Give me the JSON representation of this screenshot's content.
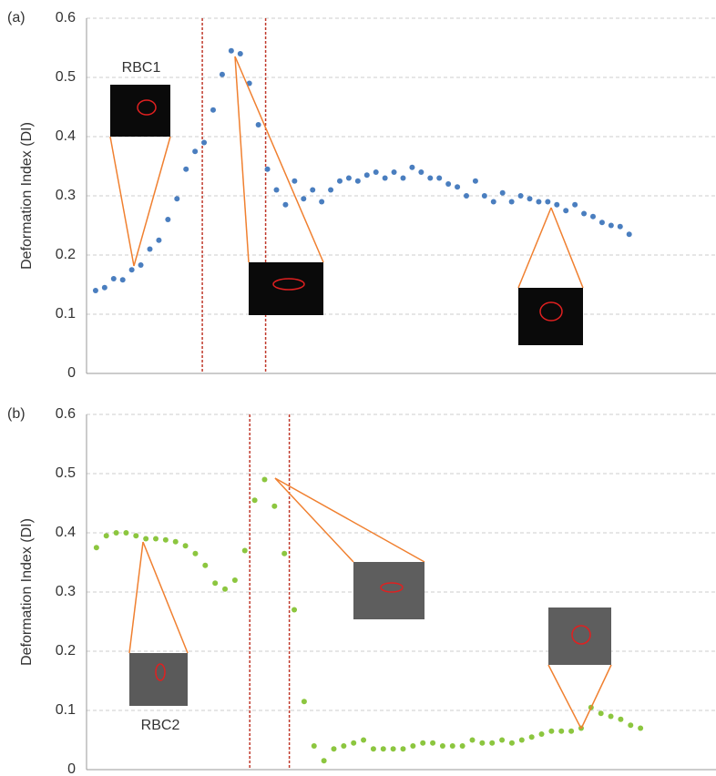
{
  "chart_data": [
    {
      "type": "scatter",
      "panel_label": "(a)",
      "y_label": "Deformation Index (DI)",
      "annotation": "RBC1",
      "color": "#4a7ebf",
      "x": [
        1,
        2,
        3,
        4,
        5,
        6,
        7,
        8,
        9,
        10,
        11,
        12,
        13,
        14,
        15,
        16,
        17,
        18,
        19,
        20,
        21,
        22,
        23,
        24,
        25,
        26,
        27,
        28,
        29,
        30,
        31,
        32,
        33,
        34,
        35,
        36,
        37,
        38,
        39,
        40,
        41,
        42,
        43,
        44,
        45,
        46,
        47,
        48,
        49,
        50,
        51,
        52,
        53,
        54,
        55,
        56,
        57,
        58,
        59,
        60
      ],
      "values": [
        0.14,
        0.145,
        0.16,
        0.158,
        0.175,
        0.183,
        0.21,
        0.225,
        0.26,
        0.295,
        0.345,
        0.375,
        0.39,
        0.445,
        0.505,
        0.545,
        0.54,
        0.49,
        0.42,
        0.345,
        0.31,
        0.285,
        0.325,
        0.295,
        0.31,
        0.29,
        0.31,
        0.325,
        0.33,
        0.325,
        0.335,
        0.34,
        0.33,
        0.34,
        0.33,
        0.348,
        0.34,
        0.33,
        0.33,
        0.32,
        0.315,
        0.3,
        0.325,
        0.3,
        0.29,
        0.305,
        0.29,
        0.3,
        0.295,
        0.29,
        0.29,
        0.285,
        0.275,
        0.285,
        0.27,
        0.265,
        0.255,
        0.25,
        0.248,
        0.235
      ],
      "xlim": [
        0,
        70
      ],
      "ylim": [
        0,
        0.6
      ],
      "yticks": [
        0,
        0.1,
        0.2,
        0.3,
        0.4,
        0.5,
        0.6
      ],
      "grid": true,
      "vlines": [
        12.8,
        19.8
      ]
    },
    {
      "type": "scatter",
      "panel_label": "(b)",
      "y_label": "Deformation Index (DI)",
      "annotation": "RBC2",
      "color": "#8cc63f",
      "x": [
        1,
        2,
        3,
        4,
        5,
        6,
        7,
        8,
        9,
        10,
        11,
        12,
        13,
        14,
        15,
        16,
        17,
        18,
        19,
        20,
        21,
        22,
        23,
        24,
        25,
        26,
        27,
        28,
        29,
        30,
        31,
        32,
        33,
        34,
        35,
        36,
        37,
        38,
        39,
        40,
        41,
        42,
        43,
        44,
        45,
        46,
        47,
        48,
        49,
        50,
        51,
        52,
        53,
        54,
        55,
        56
      ],
      "values": [
        0.375,
        0.395,
        0.4,
        0.4,
        0.395,
        0.39,
        0.39,
        0.388,
        0.385,
        0.378,
        0.365,
        0.345,
        0.315,
        0.305,
        0.32,
        0.37,
        0.455,
        0.49,
        0.445,
        0.365,
        0.27,
        0.115,
        0.04,
        0.015,
        0.035,
        0.04,
        0.045,
        0.05,
        0.035,
        0.035,
        0.035,
        0.035,
        0.04,
        0.045,
        0.045,
        0.04,
        0.04,
        0.04,
        0.05,
        0.045,
        0.045,
        0.05,
        0.045,
        0.05,
        0.055,
        0.06,
        0.065,
        0.065,
        0.065,
        0.07,
        0.105,
        0.095,
        0.09,
        0.085,
        0.075,
        0.07
      ],
      "xlim": [
        0,
        64
      ],
      "ylim": [
        0,
        0.6
      ],
      "yticks": [
        0,
        0.1,
        0.2,
        0.3,
        0.4,
        0.5,
        0.6
      ],
      "grid": true,
      "vlines": [
        16.5,
        20.5
      ]
    }
  ]
}
